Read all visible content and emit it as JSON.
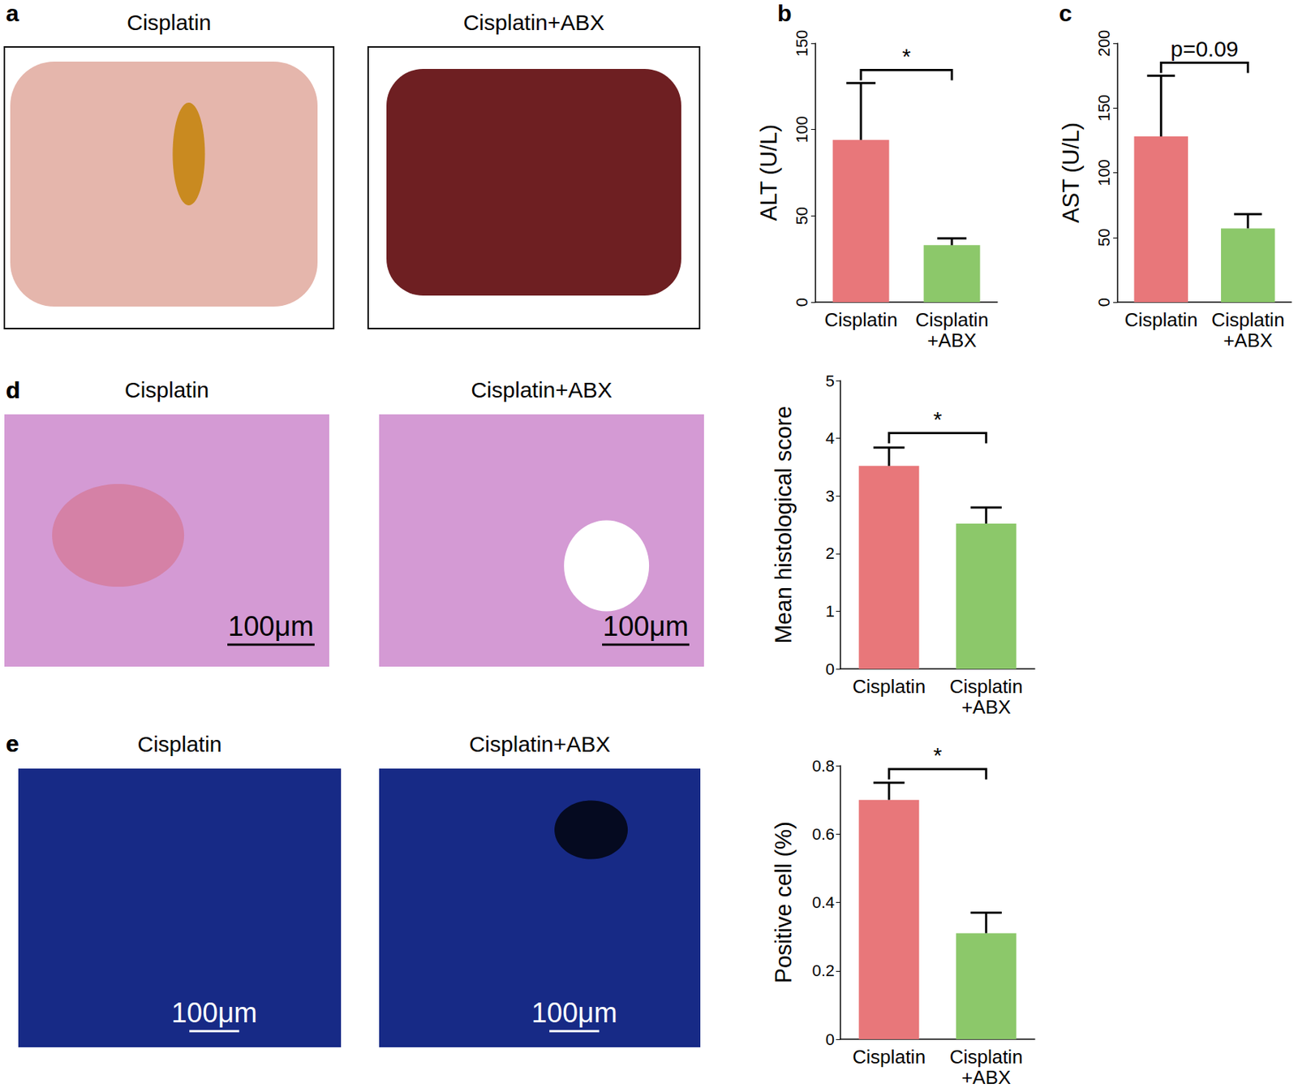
{
  "panels": [
    {
      "label": "a",
      "images": [
        {
          "title": "Cisplatin"
        },
        {
          "title": "Cisplatin+ABX"
        }
      ]
    },
    {
      "label": "d",
      "images": [
        {
          "title": "Cisplatin",
          "scale_bar": "100μm"
        },
        {
          "title": "Cisplatin+ABX",
          "scale_bar": "100μm"
        }
      ]
    },
    {
      "label": "e",
      "images": [
        {
          "title": "Cisplatin",
          "scale_bar": "100μm"
        },
        {
          "title": "Cisplatin+ABX",
          "scale_bar": "100μm"
        }
      ]
    }
  ],
  "chart_data": [
    {
      "panel": "b",
      "type": "bar",
      "ylabel": "ALT (U/L)",
      "categories": [
        "Cisplatin",
        "Cisplatin\n+ABX"
      ],
      "values": [
        94,
        33
      ],
      "errors": [
        33,
        4
      ],
      "colors": [
        "#e8777a",
        "#8cc86a"
      ],
      "ylim": [
        0,
        150
      ],
      "yticks": [
        0,
        50,
        100,
        150
      ],
      "grid": false,
      "annotation": "*"
    },
    {
      "panel": "c",
      "type": "bar",
      "ylabel": "AST (U/L)",
      "categories": [
        "Cisplatin",
        "Cisplatin\n+ABX"
      ],
      "values": [
        128,
        57
      ],
      "errors": [
        47,
        11
      ],
      "colors": [
        "#e8777a",
        "#8cc86a"
      ],
      "ylim": [
        0,
        200
      ],
      "yticks": [
        0,
        50,
        100,
        150,
        200
      ],
      "grid": false,
      "annotation": "p=0.09"
    },
    {
      "panel": "d",
      "type": "bar",
      "ylabel": "Mean histological score",
      "categories": [
        "Cisplatin",
        "Cisplatin\n+ABX"
      ],
      "values": [
        3.52,
        2.52
      ],
      "errors": [
        0.32,
        0.28
      ],
      "colors": [
        "#e8777a",
        "#8cc86a"
      ],
      "ylim": [
        0,
        5
      ],
      "yticks": [
        0,
        1,
        2,
        3,
        4,
        5
      ],
      "grid": false,
      "annotation": "*"
    },
    {
      "panel": "e",
      "type": "bar",
      "ylabel": "Positive cell (%)",
      "categories": [
        "Cisplatin",
        "Cisplatin\n+ABX"
      ],
      "values": [
        0.7,
        0.31
      ],
      "errors": [
        0.05,
        0.06
      ],
      "colors": [
        "#e8777a",
        "#8cc86a"
      ],
      "ylim": [
        0,
        0.8
      ],
      "yticks": [
        0,
        0.2,
        0.4,
        0.6,
        0.8
      ],
      "grid": false,
      "annotation": "*"
    }
  ]
}
